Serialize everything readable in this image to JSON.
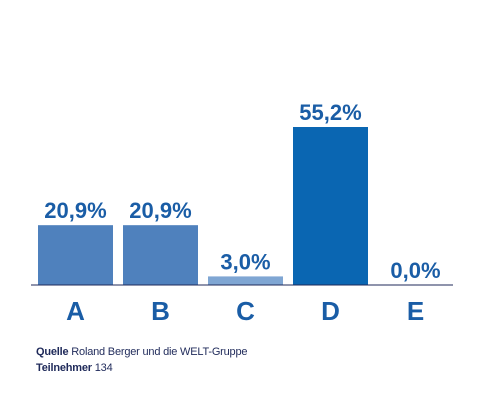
{
  "chart_data": {
    "type": "bar",
    "categories": [
      "A",
      "B",
      "C",
      "D",
      "E"
    ],
    "values": [
      20.9,
      20.9,
      3.0,
      55.2,
      0.0
    ],
    "value_labels": [
      "20,9%",
      "20,9%",
      "3,0%",
      "55,2%",
      "0,0%"
    ],
    "bar_colors": [
      "#4f81bd",
      "#4f81bd",
      "#7fa6d3",
      "#0a66b2",
      "#4f81bd"
    ],
    "label_color": "#1a5da6",
    "ylim": [
      0,
      60
    ],
    "grid": false,
    "title": "",
    "xlabel": "",
    "ylabel": ""
  },
  "footer": {
    "source_label": "Quelle",
    "source_text": "Roland Berger und die WELT-Gruppe",
    "participants_label": "Teilnehmer",
    "participants_text": "134"
  }
}
